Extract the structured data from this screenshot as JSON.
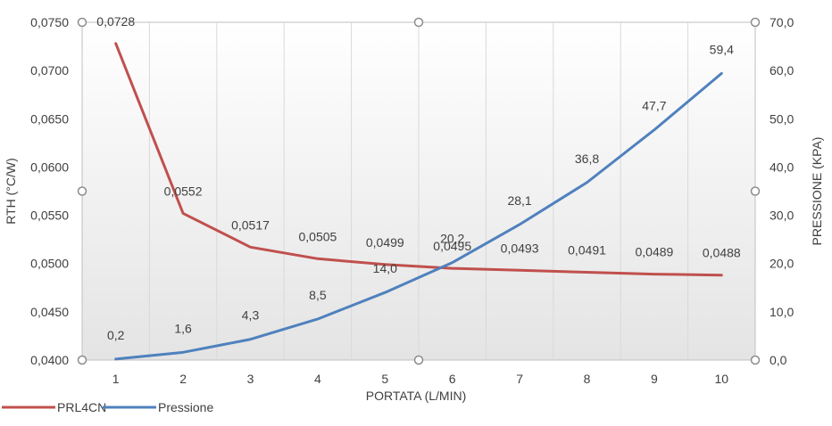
{
  "chart_data": {
    "type": "line",
    "xlabel": "PORTATA (L/MIN)",
    "ylabel_left": "RTH (°C/W)",
    "ylabel_right": "PRESSIONE (KPA)",
    "categories": [
      "1",
      "2",
      "3",
      "4",
      "5",
      "6",
      "7",
      "8",
      "9",
      "10"
    ],
    "x": [
      1,
      2,
      3,
      4,
      5,
      6,
      7,
      8,
      9,
      10
    ],
    "y_left_lim": [
      0.04,
      0.075
    ],
    "y_left_ticks": [
      "0,0400",
      "0,0450",
      "0,0500",
      "0,0550",
      "0,0600",
      "0,0650",
      "0,0700",
      "0,0750"
    ],
    "y_right_lim": [
      0,
      70
    ],
    "y_right_ticks": [
      "0,0",
      "10,0",
      "20,0",
      "30,0",
      "40,0",
      "50,0",
      "60,0",
      "70,0"
    ],
    "grid": "vertical",
    "legend_position": "bottom-left",
    "series": [
      {
        "name": "PRL4CN",
        "axis": "left",
        "color": "#C0504D",
        "values": [
          0.0728,
          0.0552,
          0.0517,
          0.0505,
          0.0499,
          0.0495,
          0.0493,
          0.0491,
          0.0489,
          0.0488
        ],
        "labels": [
          "0,0728",
          "0,0552",
          "0,0517",
          "0,0505",
          "0,0499",
          "0,0495",
          "0,0493",
          "0,0491",
          "0,0489",
          "0,0488"
        ]
      },
      {
        "name": "Pressione",
        "axis": "right",
        "color": "#4F81BD",
        "values": [
          0.2,
          1.6,
          4.3,
          8.5,
          14.0,
          20.2,
          28.1,
          36.8,
          47.7,
          59.4
        ],
        "labels": [
          "0,2",
          "1,6",
          "4,3",
          "8,5",
          "14,0",
          "20,2",
          "28,1",
          "36,8",
          "47,7",
          "59,4"
        ]
      }
    ]
  }
}
